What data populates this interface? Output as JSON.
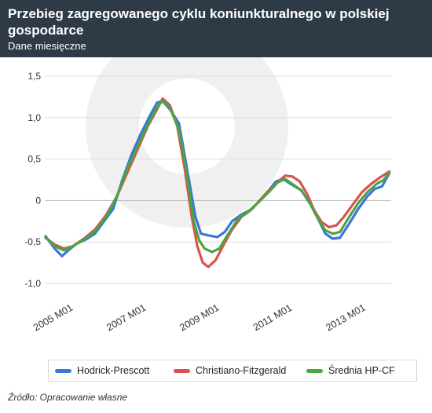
{
  "header": {
    "title": "Przebieg zagregowanego cyklu koniunkturalnego w polskiej gospodarce",
    "subtitle": "Dane miesięczne"
  },
  "source": "Źródło: Opracowanie własne",
  "colors": {
    "header_bg": "#2f3a47",
    "hp": "#3b78d6",
    "cf": "#d9534f",
    "avg": "#4ea342",
    "grid": "#dedede"
  },
  "chart_data": {
    "type": "line",
    "title": "Przebieg zagregowanego cyklu koniunkturalnego w polskiej gospodarce",
    "subtitle": "Dane miesięczne",
    "xlabel": "",
    "ylabel": "",
    "x_ticks": [
      "2005 M01",
      "2007 M01",
      "2009 M01",
      "2011 M01",
      "2013 M01"
    ],
    "x_range": [
      2004.75,
      2014.2
    ],
    "y_ticks": [
      1.5,
      1.0,
      0.5,
      0,
      -0.5,
      -1.0
    ],
    "y_tick_labels": [
      "1,5",
      "1,0",
      "0,5",
      "0",
      "-0,5",
      "-1,0"
    ],
    "ylim": [
      -1.0,
      1.5
    ],
    "grid": true,
    "legend_position": "bottom",
    "series": [
      {
        "name": "Hodrick-Prescott",
        "color": "#3b78d6",
        "points": [
          [
            2004.75,
            -0.43
          ],
          [
            2005.0,
            -0.58
          ],
          [
            2005.2,
            -0.67
          ],
          [
            2005.35,
            -0.61
          ],
          [
            2005.6,
            -0.52
          ],
          [
            2005.85,
            -0.47
          ],
          [
            2006.1,
            -0.4
          ],
          [
            2006.35,
            -0.25
          ],
          [
            2006.6,
            -0.1
          ],
          [
            2006.85,
            0.25
          ],
          [
            2007.1,
            0.55
          ],
          [
            2007.35,
            0.8
          ],
          [
            2007.6,
            1.02
          ],
          [
            2007.8,
            1.18
          ],
          [
            2007.95,
            1.2
          ],
          [
            2008.15,
            1.1
          ],
          [
            2008.4,
            0.93
          ],
          [
            2008.65,
            0.3
          ],
          [
            2008.85,
            -0.2
          ],
          [
            2009.0,
            -0.4
          ],
          [
            2009.2,
            -0.42
          ],
          [
            2009.45,
            -0.44
          ],
          [
            2009.65,
            -0.38
          ],
          [
            2009.85,
            -0.25
          ],
          [
            2010.1,
            -0.17
          ],
          [
            2010.4,
            -0.1
          ],
          [
            2010.6,
            0.0
          ],
          [
            2010.85,
            0.12
          ],
          [
            2011.05,
            0.23
          ],
          [
            2011.25,
            0.26
          ],
          [
            2011.45,
            0.2
          ],
          [
            2011.75,
            0.12
          ],
          [
            2012.0,
            -0.05
          ],
          [
            2012.2,
            -0.22
          ],
          [
            2012.4,
            -0.4
          ],
          [
            2012.6,
            -0.46
          ],
          [
            2012.8,
            -0.45
          ],
          [
            2013.05,
            -0.28
          ],
          [
            2013.3,
            -0.1
          ],
          [
            2013.55,
            0.05
          ],
          [
            2013.75,
            0.14
          ],
          [
            2013.95,
            0.17
          ],
          [
            2014.15,
            0.33
          ]
        ]
      },
      {
        "name": "Christiano-Fitzgerald",
        "color": "#d9534f",
        "points": [
          [
            2004.75,
            -0.45
          ],
          [
            2005.0,
            -0.53
          ],
          [
            2005.25,
            -0.58
          ],
          [
            2005.5,
            -0.55
          ],
          [
            2005.8,
            -0.46
          ],
          [
            2006.1,
            -0.35
          ],
          [
            2006.4,
            -0.18
          ],
          [
            2006.7,
            0.05
          ],
          [
            2007.0,
            0.35
          ],
          [
            2007.3,
            0.65
          ],
          [
            2007.55,
            0.9
          ],
          [
            2007.8,
            1.1
          ],
          [
            2007.95,
            1.23
          ],
          [
            2008.15,
            1.15
          ],
          [
            2008.35,
            0.9
          ],
          [
            2008.55,
            0.4
          ],
          [
            2008.75,
            -0.2
          ],
          [
            2008.9,
            -0.55
          ],
          [
            2009.05,
            -0.75
          ],
          [
            2009.2,
            -0.8
          ],
          [
            2009.4,
            -0.72
          ],
          [
            2009.6,
            -0.55
          ],
          [
            2009.85,
            -0.35
          ],
          [
            2010.1,
            -0.2
          ],
          [
            2010.35,
            -0.12
          ],
          [
            2010.6,
            0.0
          ],
          [
            2010.85,
            0.12
          ],
          [
            2011.1,
            0.22
          ],
          [
            2011.3,
            0.3
          ],
          [
            2011.5,
            0.29
          ],
          [
            2011.7,
            0.23
          ],
          [
            2011.9,
            0.08
          ],
          [
            2012.1,
            -0.12
          ],
          [
            2012.3,
            -0.26
          ],
          [
            2012.5,
            -0.32
          ],
          [
            2012.7,
            -0.3
          ],
          [
            2012.9,
            -0.2
          ],
          [
            2013.15,
            -0.05
          ],
          [
            2013.4,
            0.1
          ],
          [
            2013.65,
            0.2
          ],
          [
            2013.9,
            0.28
          ],
          [
            2014.15,
            0.35
          ]
        ]
      },
      {
        "name": "Średnia HP-CF",
        "color": "#4ea342",
        "points": [
          [
            2004.75,
            -0.44
          ],
          [
            2005.0,
            -0.55
          ],
          [
            2005.25,
            -0.6
          ],
          [
            2005.5,
            -0.55
          ],
          [
            2005.8,
            -0.47
          ],
          [
            2006.1,
            -0.37
          ],
          [
            2006.4,
            -0.2
          ],
          [
            2006.7,
            0.05
          ],
          [
            2007.0,
            0.4
          ],
          [
            2007.3,
            0.68
          ],
          [
            2007.55,
            0.92
          ],
          [
            2007.8,
            1.12
          ],
          [
            2007.95,
            1.21
          ],
          [
            2008.15,
            1.12
          ],
          [
            2008.4,
            0.85
          ],
          [
            2008.6,
            0.35
          ],
          [
            2008.8,
            -0.25
          ],
          [
            2008.95,
            -0.48
          ],
          [
            2009.1,
            -0.58
          ],
          [
            2009.3,
            -0.62
          ],
          [
            2009.5,
            -0.58
          ],
          [
            2009.75,
            -0.4
          ],
          [
            2010.0,
            -0.23
          ],
          [
            2010.3,
            -0.13
          ],
          [
            2010.55,
            -0.03
          ],
          [
            2010.85,
            0.1
          ],
          [
            2011.1,
            0.22
          ],
          [
            2011.3,
            0.26
          ],
          [
            2011.5,
            0.2
          ],
          [
            2011.75,
            0.12
          ],
          [
            2012.0,
            -0.05
          ],
          [
            2012.2,
            -0.22
          ],
          [
            2012.4,
            -0.36
          ],
          [
            2012.6,
            -0.4
          ],
          [
            2012.8,
            -0.38
          ],
          [
            2013.05,
            -0.2
          ],
          [
            2013.3,
            -0.03
          ],
          [
            2013.55,
            0.1
          ],
          [
            2013.8,
            0.2
          ],
          [
            2014.0,
            0.25
          ],
          [
            2014.15,
            0.34
          ]
        ]
      }
    ]
  }
}
